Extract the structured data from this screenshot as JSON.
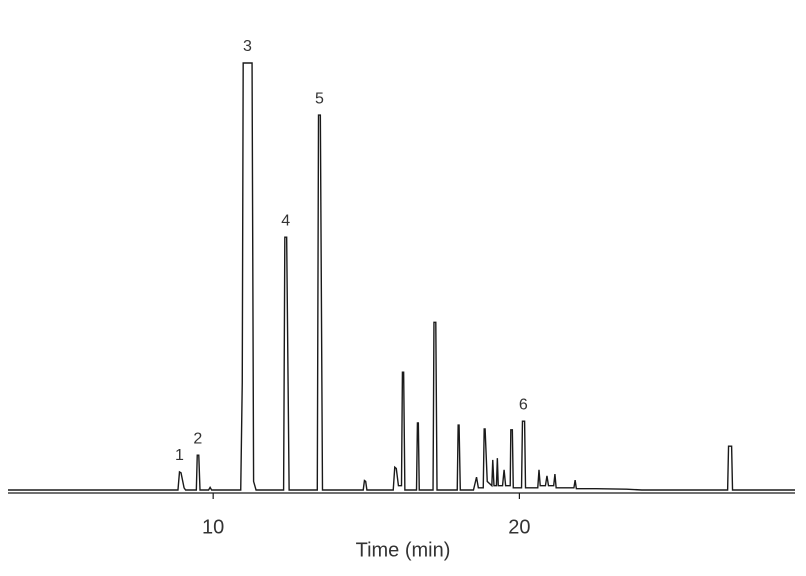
{
  "chart_data": {
    "type": "line",
    "x_label": "Time (min)",
    "xlim": [
      3.3,
      29
    ],
    "xticks": [
      10,
      20
    ],
    "ylim": [
      0,
      100
    ],
    "color": "#1a1a1a",
    "x": [
      3.3,
      8.85,
      8.9,
      8.95,
      9.05,
      9.1,
      9.45,
      9.48,
      9.53,
      9.57,
      9.85,
      9.9,
      9.95,
      10.9,
      10.95,
      10.98,
      11.27,
      11.32,
      11.4,
      12.3,
      12.34,
      12.4,
      12.48,
      13.4,
      13.44,
      13.5,
      13.57,
      14.9,
      14.94,
      14.98,
      15.02,
      15.88,
      15.93,
      15.98,
      16.05,
      16.15,
      16.18,
      16.22,
      16.26,
      16.64,
      16.67,
      16.7,
      16.73,
      17.18,
      17.21,
      17.27,
      17.31,
      17.97,
      18.0,
      18.03,
      18.07,
      18.5,
      18.6,
      18.66,
      18.82,
      18.85,
      18.88,
      18.95,
      19.1,
      19.13,
      19.17,
      19.25,
      19.28,
      19.31,
      19.45,
      19.5,
      19.55,
      19.7,
      19.72,
      19.77,
      19.8,
      20.07,
      20.1,
      20.17,
      20.2,
      20.6,
      20.64,
      20.68,
      20.85,
      20.9,
      20.95,
      21.12,
      21.16,
      21.2,
      21.78,
      21.82,
      21.86,
      22.5,
      23.5,
      24,
      26.8,
      26.83,
      26.93,
      26.96,
      29
    ],
    "values": [
      0,
      0,
      4.2,
      4.0,
      0.5,
      0,
      0,
      8.1,
      8.1,
      0,
      0,
      0.6,
      0,
      0,
      25,
      99.3,
      99.3,
      2,
      0,
      0,
      58.8,
      58.8,
      0,
      0,
      87.2,
      87.2,
      0,
      0,
      2.2,
      2,
      0,
      0,
      5.3,
      5,
      1,
      1,
      27.4,
      27.4,
      0,
      0,
      15.6,
      15.6,
      0,
      0,
      39,
      39,
      0,
      0,
      15.1,
      15.1,
      0,
      0,
      3,
      0.5,
      0.5,
      14.2,
      14.2,
      2,
      1,
      7,
      1,
      1,
      7.4,
      1,
      1,
      4.7,
      1,
      1,
      14,
      14,
      0.5,
      0.5,
      16,
      16,
      0.5,
      0.5,
      4.7,
      1,
      1,
      3.3,
      1,
      1,
      3.7,
      0.5,
      0.5,
      2.3,
      0.3,
      0.3,
      0.2,
      0,
      0,
      10.2,
      10.2,
      0,
      0
    ],
    "annotations": [
      {
        "text": "1",
        "x": 8.9,
        "y": 4.2
      },
      {
        "text": "2",
        "x": 9.5,
        "y": 8.1
      },
      {
        "text": "3",
        "x": 11.12,
        "y": 99.3
      },
      {
        "text": "4",
        "x": 12.37,
        "y": 58.8
      },
      {
        "text": "5",
        "x": 13.47,
        "y": 87.2
      },
      {
        "text": "6",
        "x": 20.13,
        "y": 16
      }
    ]
  }
}
